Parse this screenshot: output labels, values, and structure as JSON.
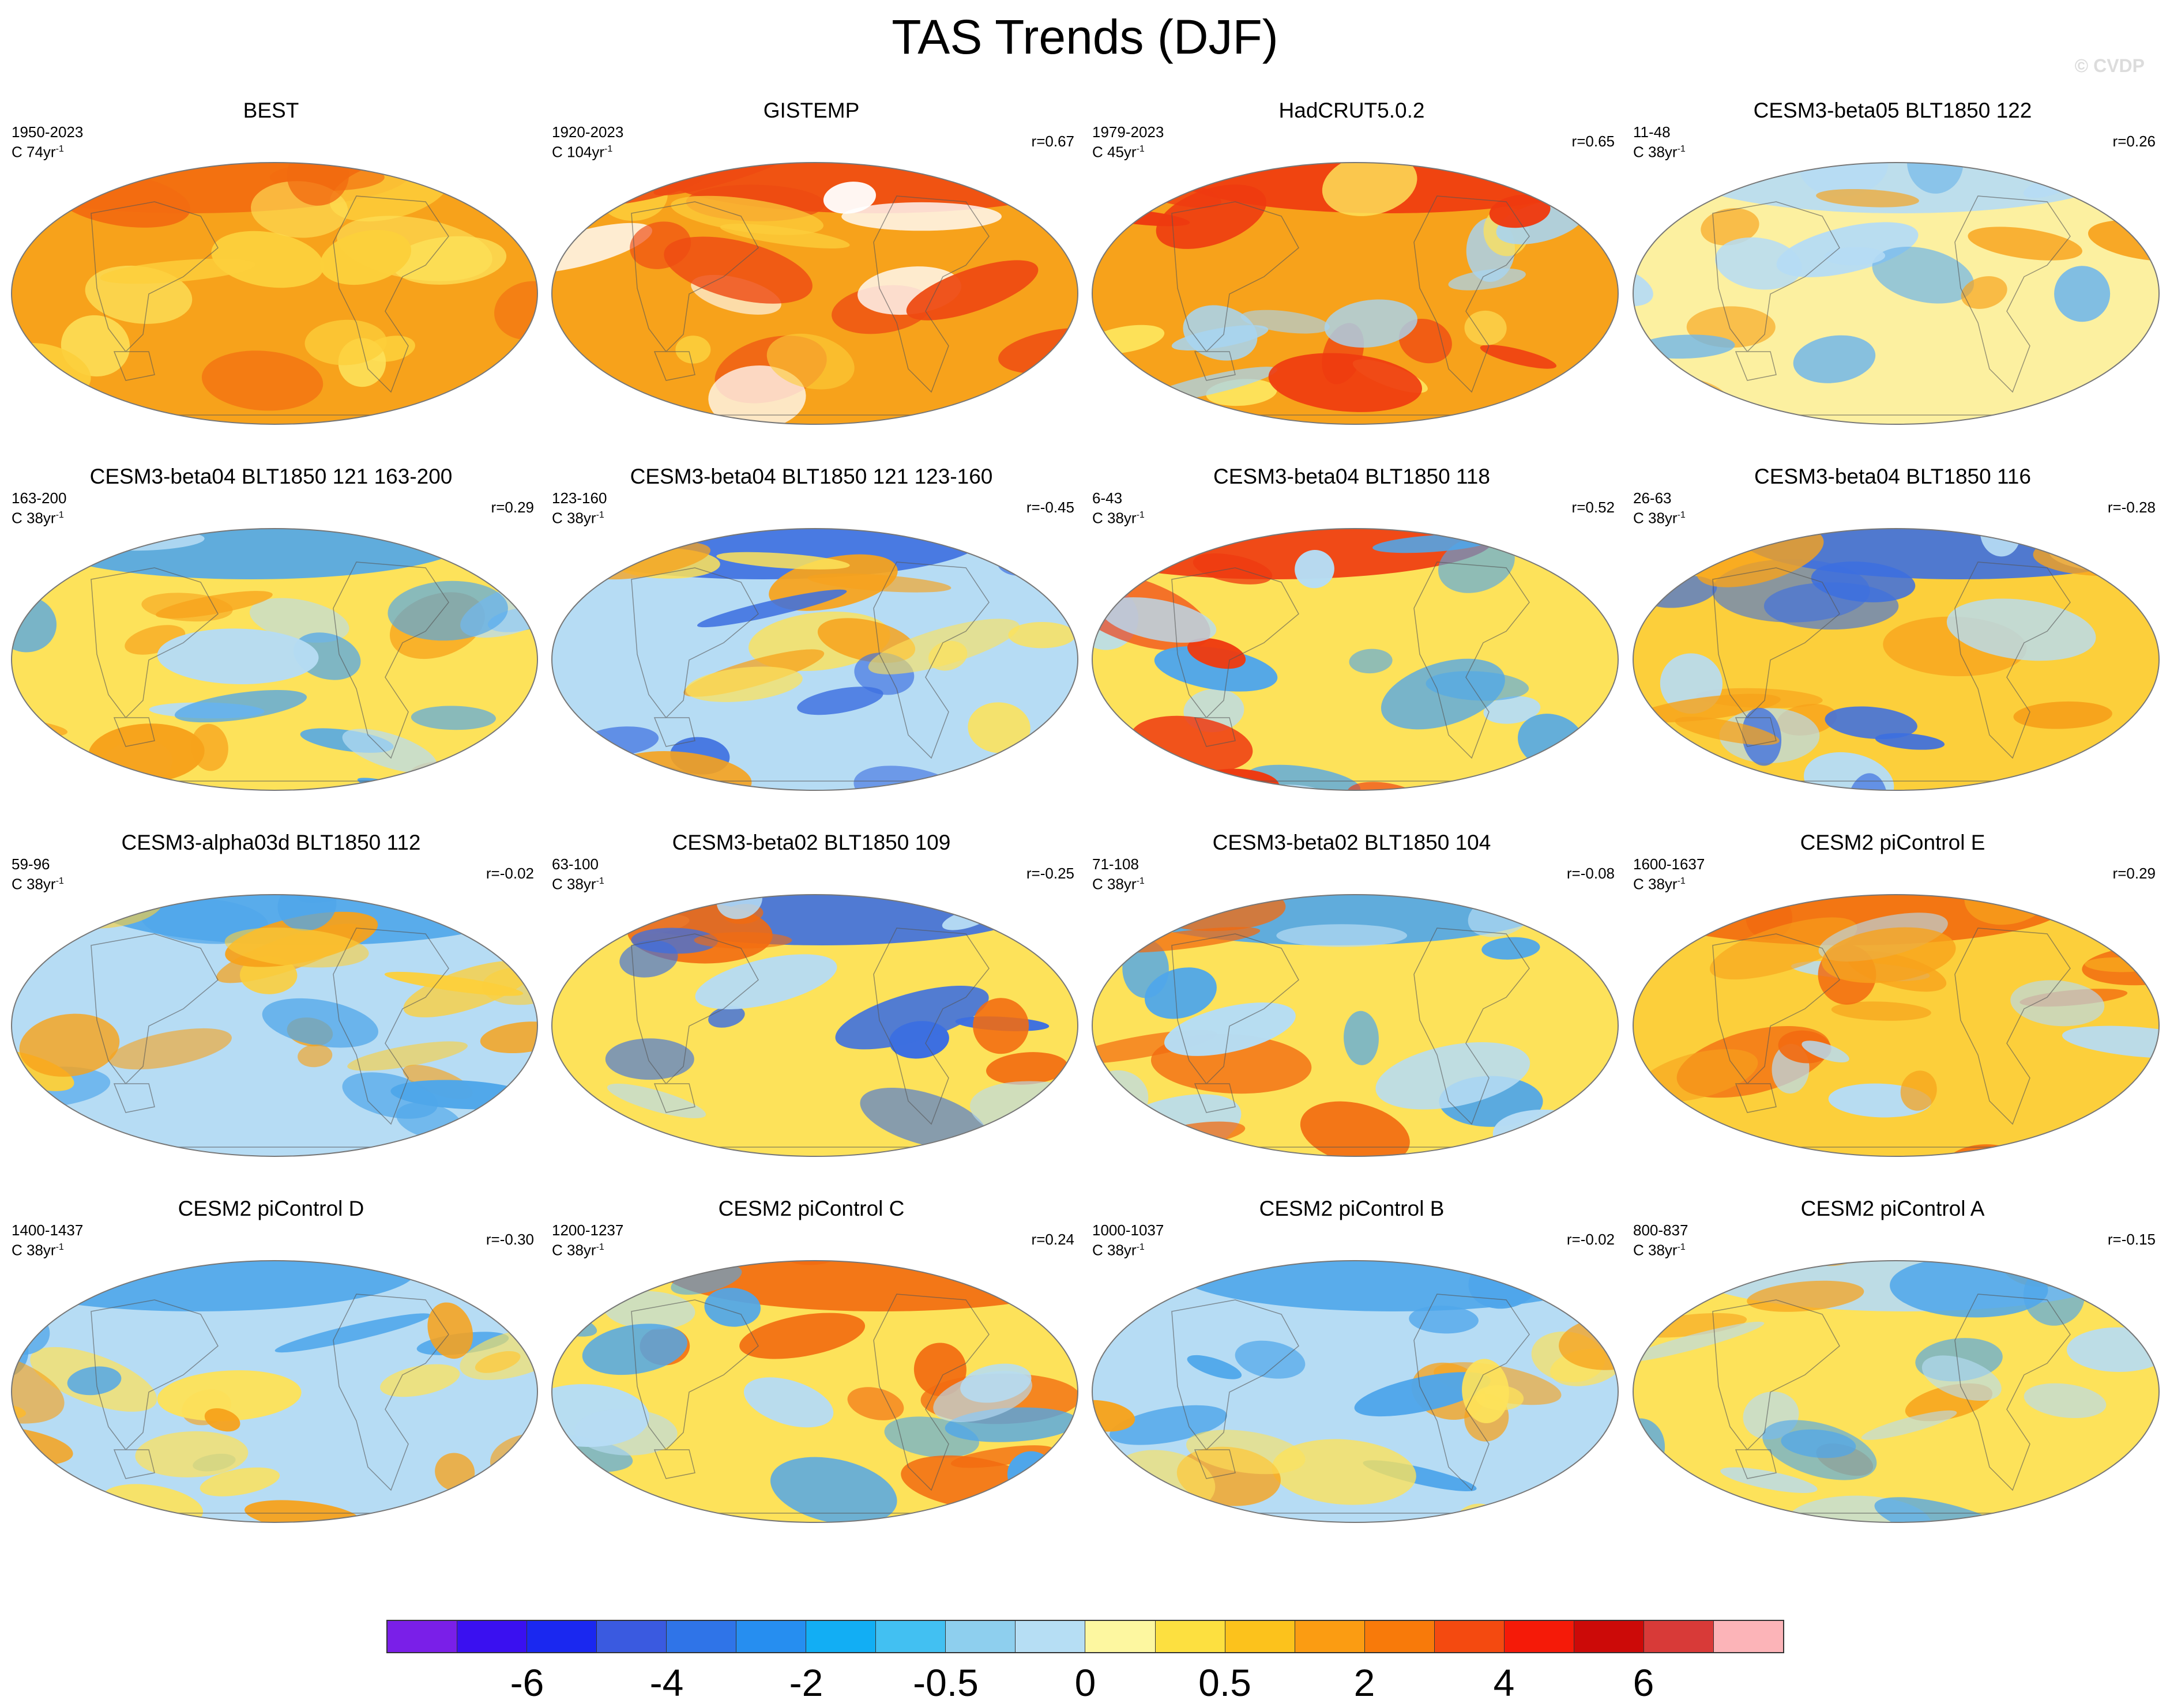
{
  "title": "TAS Trends (DJF)",
  "watermark": "© CVDP",
  "colors": {
    "background": "#ffffff",
    "ocean_outline": "#555555"
  },
  "panels": [
    {
      "title": "BEST",
      "period": "1950-2023",
      "c_label": "C 74yr",
      "r": "",
      "base": "#f7a21b",
      "patches": [
        "#f26b10",
        "#fccf3b",
        "#fde25a"
      ]
    },
    {
      "title": "GISTEMP",
      "period": "1920-2023",
      "c_label": "C 104yr",
      "r": "r=0.67",
      "base": "#f7a21b",
      "patches": [
        "#ee4a12",
        "#fccf3b",
        "#ffffff"
      ]
    },
    {
      "title": "HadCRUT5.0.2",
      "period": "1979-2023",
      "c_label": "C 45yr",
      "r": "r=0.65",
      "base": "#f7a21b",
      "patches": [
        "#ee3a10",
        "#fde25a",
        "#a8d4f0"
      ]
    },
    {
      "title": "CESM3-beta05 BLT1850 122",
      "period": "11-48",
      "c_label": "C 38yr",
      "r": "r=0.26",
      "base": "#fcf0a0",
      "patches": [
        "#b6dcf4",
        "#f7a21b",
        "#6fb6ea"
      ]
    },
    {
      "title": "CESM3-beta04 BLT1850 121 163-200",
      "period": "163-200",
      "c_label": "C 38yr",
      "r": "r=0.29",
      "base": "#fde25a",
      "patches": [
        "#4fa6ea",
        "#f7a21b",
        "#b6dcf4"
      ]
    },
    {
      "title": "CESM3-beta04 BLT1850 121 123-160",
      "period": "123-160",
      "c_label": "C 38yr",
      "r": "r=-0.45",
      "base": "#b6dcf4",
      "patches": [
        "#3d6fe0",
        "#fde25a",
        "#f7a21b"
      ]
    },
    {
      "title": "CESM3-beta04 BLT1850 118",
      "period": "6-43",
      "c_label": "C 38yr",
      "r": "r=0.52",
      "base": "#fde25a",
      "patches": [
        "#ee3a10",
        "#4fa6ea",
        "#b6dcf4"
      ]
    },
    {
      "title": "CESM3-beta04 BLT1850 116",
      "period": "26-63",
      "c_label": "C 38yr",
      "r": "r=-0.28",
      "base": "#fccf3b",
      "patches": [
        "#3d6fe0",
        "#f7a21b",
        "#b6dcf4"
      ]
    },
    {
      "title": "CESM3-alpha03d BLT1850 112",
      "period": "59-96",
      "c_label": "C 38yr",
      "r": "r=-0.02",
      "base": "#b6dcf4",
      "patches": [
        "#4fa6ea",
        "#fccf3b",
        "#f7a21b"
      ]
    },
    {
      "title": "CESM3-beta02 BLT1850 109",
      "period": "63-100",
      "c_label": "C 38yr",
      "r": "r=-0.25",
      "base": "#fde25a",
      "patches": [
        "#3d6fe0",
        "#f26b10",
        "#b6dcf4"
      ]
    },
    {
      "title": "CESM3-beta02 BLT1850 104",
      "period": "71-108",
      "c_label": "C 38yr",
      "r": "r=-0.08",
      "base": "#fde25a",
      "patches": [
        "#4fa6ea",
        "#f26b10",
        "#b6dcf4"
      ]
    },
    {
      "title": "CESM2 piControl E",
      "period": "1600-1637",
      "c_label": "C 38yr",
      "r": "r=0.29",
      "base": "#fccf3b",
      "patches": [
        "#f26b10",
        "#b6dcf4",
        "#f7a21b"
      ]
    },
    {
      "title": "CESM2 piControl D",
      "period": "1400-1437",
      "c_label": "C 38yr",
      "r": "r=-0.30",
      "base": "#b6dcf4",
      "patches": [
        "#4fa6ea",
        "#f7a21b",
        "#fde25a"
      ]
    },
    {
      "title": "CESM2 piControl C",
      "period": "1200-1237",
      "c_label": "C 38yr",
      "r": "r=0.24",
      "base": "#fde25a",
      "patches": [
        "#f26b10",
        "#4fa6ea",
        "#b6dcf4"
      ]
    },
    {
      "title": "CESM2 piControl B",
      "period": "1000-1037",
      "c_label": "C 38yr",
      "r": "r=-0.02",
      "base": "#b6dcf4",
      "patches": [
        "#4fa6ea",
        "#fde25a",
        "#f7a21b"
      ]
    },
    {
      "title": "CESM2 piControl A",
      "period": "800-837",
      "c_label": "C 38yr",
      "r": "r=-0.15",
      "base": "#fde25a",
      "patches": [
        "#b6dcf4",
        "#4fa6ea",
        "#f7a21b"
      ]
    }
  ],
  "colorbar": {
    "colors": [
      "#7a1fe8",
      "#3a10f0",
      "#1a28f0",
      "#3a5ae0",
      "#2f74e8",
      "#268ef0",
      "#12aef4",
      "#42c0f2",
      "#8ecfee",
      "#b6def4",
      "#fdf7a0",
      "#fde040",
      "#fcc21c",
      "#fb9c12",
      "#f87a0a",
      "#f44a10",
      "#f51a08",
      "#cc0a08",
      "#d83a38",
      "#fcb4b8"
    ],
    "labels": [
      "-6",
      "-4",
      "-2",
      "-0.5",
      "0",
      "0.5",
      "2",
      "4",
      "6"
    ]
  }
}
